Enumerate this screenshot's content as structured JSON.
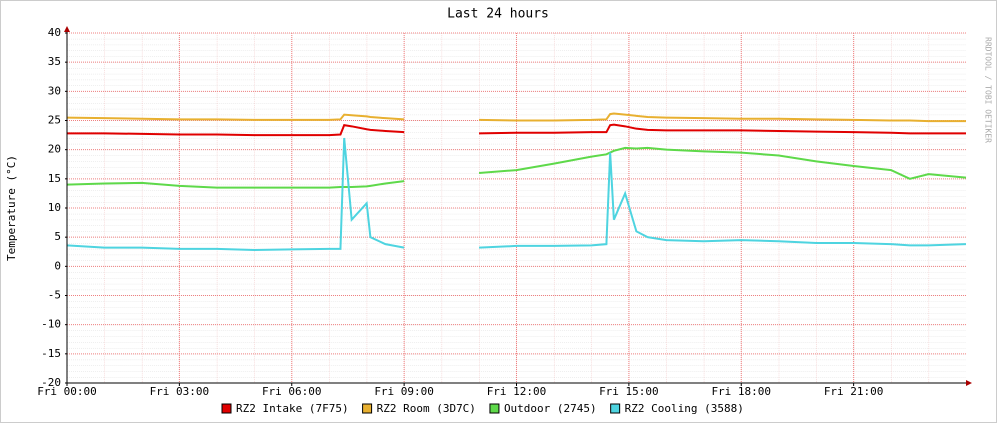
{
  "chart_data": {
    "type": "line",
    "title": "Last 24 hours",
    "y_label": "Temperature (°C)",
    "watermark": "RRDTOOL / TOBI OETIKER",
    "x": [
      0,
      1,
      2,
      3,
      4,
      5,
      6,
      7,
      7.3,
      7.4,
      7.6,
      8,
      8.1,
      8.5,
      9,
      10,
      11,
      12,
      13,
      14,
      14.4,
      14.5,
      14.6,
      14.9,
      15.2,
      15.5,
      16,
      17,
      18,
      19,
      20,
      21,
      22,
      22.5,
      23,
      24
    ],
    "series": [
      {
        "name": "RZ2 Intake (7F75)",
        "color": "#e00000",
        "values": [
          22.8,
          22.8,
          22.7,
          22.6,
          22.6,
          22.5,
          22.5,
          22.5,
          22.6,
          24.2,
          24,
          23.5,
          23.4,
          23.2,
          23,
          null,
          22.8,
          22.9,
          22.9,
          23,
          23,
          24.2,
          24.3,
          24,
          23.6,
          23.4,
          23.3,
          23.3,
          23.3,
          23.2,
          23.1,
          23,
          22.9,
          22.8,
          22.8,
          22.8
        ]
      },
      {
        "name": "RZ2 Room (3D7C)",
        "color": "#e8b030",
        "values": [
          25.5,
          25.4,
          25.3,
          25.2,
          25.2,
          25.1,
          25.1,
          25.1,
          25.2,
          26,
          25.9,
          25.7,
          25.6,
          25.4,
          25.2,
          null,
          25.1,
          25,
          25,
          25.1,
          25.2,
          26.1,
          26.2,
          26,
          25.8,
          25.6,
          25.5,
          25.4,
          25.3,
          25.3,
          25.2,
          25.1,
          25,
          25,
          24.9,
          24.9
        ]
      },
      {
        "name": "Outdoor (2745)",
        "color": "#5ed94a",
        "values": [
          14,
          14.2,
          14.3,
          13.8,
          13.5,
          13.5,
          13.5,
          13.5,
          13.6,
          13.6,
          13.6,
          13.7,
          13.8,
          14.2,
          14.6,
          null,
          16,
          16.5,
          17.6,
          18.8,
          19.2,
          19.5,
          19.8,
          20.3,
          20.2,
          20.3,
          20,
          19.7,
          19.5,
          19,
          18,
          17.2,
          16.5,
          15,
          15.8,
          15.2
        ]
      },
      {
        "name": "RZ2 Cooling (3588)",
        "color": "#4ed4e0",
        "values": [
          3.6,
          3.2,
          3.2,
          3,
          3,
          2.8,
          2.9,
          3,
          3,
          22,
          8,
          10.8,
          5,
          3.8,
          3.2,
          null,
          3.2,
          3.5,
          3.5,
          3.6,
          3.8,
          19.5,
          8,
          12.5,
          6,
          5,
          4.5,
          4.3,
          4.5,
          4.3,
          4,
          4,
          3.8,
          3.6,
          3.6,
          3.8
        ]
      }
    ],
    "xlim": [
      0,
      24
    ],
    "xticks": [
      {
        "value": 0,
        "label": "Fri 00:00"
      },
      {
        "value": 3,
        "label": "Fri 03:00"
      },
      {
        "value": 6,
        "label": "Fri 06:00"
      },
      {
        "value": 9,
        "label": "Fri 09:00"
      },
      {
        "value": 12,
        "label": "Fri 12:00"
      },
      {
        "value": 15,
        "label": "Fri 15:00"
      },
      {
        "value": 18,
        "label": "Fri 18:00"
      },
      {
        "value": 21,
        "label": "Fri 21:00"
      }
    ],
    "ylim": [
      -20,
      40
    ],
    "yticks": [
      -20,
      -15,
      -10,
      -5,
      0,
      5,
      10,
      15,
      20,
      25,
      30,
      35,
      40
    ],
    "grid": true
  }
}
